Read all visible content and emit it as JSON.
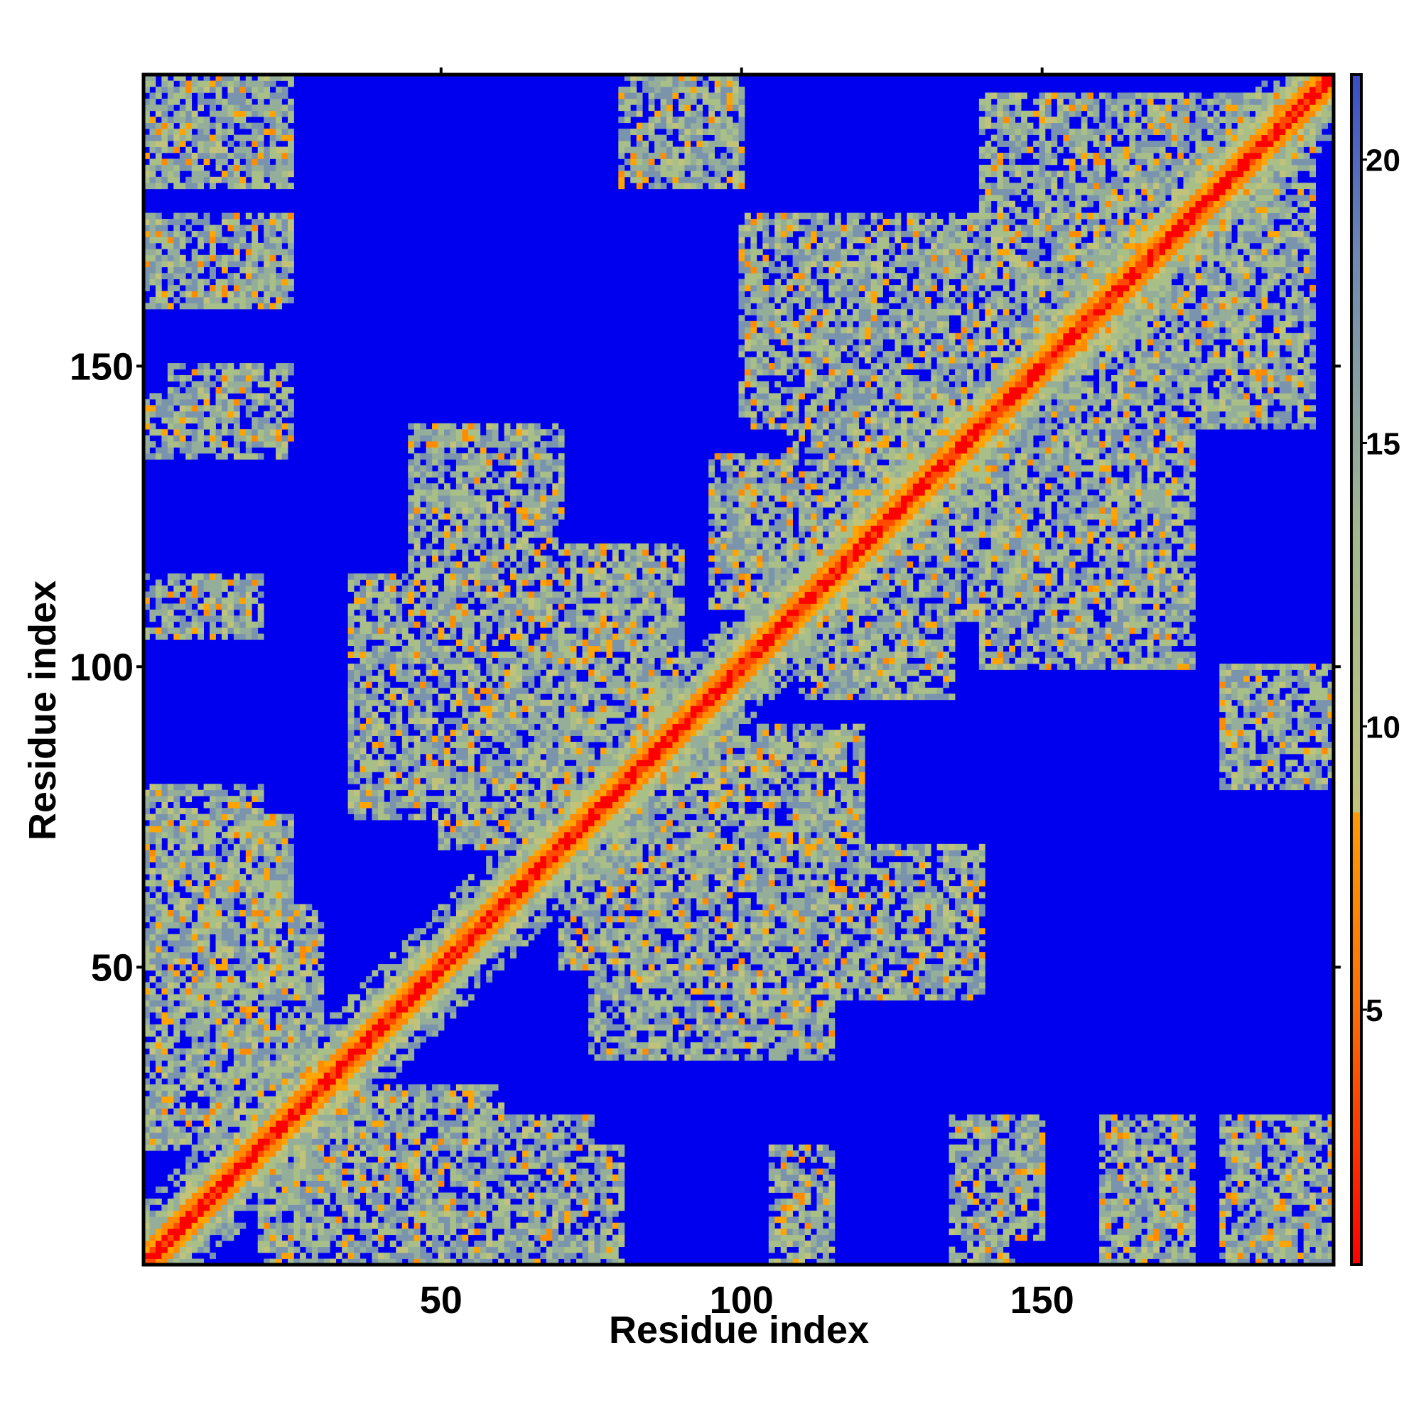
{
  "chart_data": {
    "type": "heatmap",
    "title": "",
    "xlabel": "Residue index",
    "ylabel": "Residue index",
    "xlim": [
      1,
      198
    ],
    "ylim": [
      1,
      198
    ],
    "x_ticks": [
      "50",
      "100",
      "150"
    ],
    "y_ticks": [
      "50",
      "100",
      "150"
    ],
    "colorbar": {
      "ticks": [
        "5",
        "10",
        "15",
        "20"
      ],
      "range": [
        0.5,
        21.5
      ],
      "colors": {
        "min": "#ff0000",
        "near": "#ff8c00",
        "mid": "#a9bf88",
        "far": "#6e88b4",
        "background": "#0000ee"
      }
    },
    "background_value": 21,
    "diagonal": {
      "from": 1,
      "to": 198
    },
    "contact_bands": [
      {
        "x": [
          35,
          58
        ],
        "y": [
          75,
          115
        ]
      },
      {
        "x": [
          50,
          75
        ],
        "y": [
          70,
          110
        ]
      },
      {
        "x": [
          95,
          120
        ],
        "y": [
          110,
          135
        ]
      },
      {
        "x": [
          108,
          140
        ],
        "y": [
          120,
          150
        ]
      },
      {
        "x": [
          130,
          160
        ],
        "y": [
          150,
          175
        ]
      },
      {
        "x": [
          140,
          175
        ],
        "y": [
          100,
          140
        ]
      },
      {
        "x": [
          160,
          195
        ],
        "y": [
          140,
          190
        ]
      },
      {
        "x": [
          1,
          30
        ],
        "y": [
          20,
          60
        ]
      },
      {
        "x": [
          30,
          60
        ],
        "y": [
          5,
          30
        ]
      },
      {
        "x": [
          55,
          80
        ],
        "y": [
          1,
          20
        ]
      },
      {
        "x": [
          80,
          120
        ],
        "y": [
          60,
          90
        ]
      },
      {
        "x": [
          105,
          140
        ],
        "y": [
          45,
          70
        ]
      },
      {
        "x": [
          135,
          150
        ],
        "y": [
          5,
          25
        ]
      },
      {
        "x": [
          160,
          175
        ],
        "y": [
          5,
          25
        ]
      },
      {
        "x": [
          180,
          198
        ],
        "y": [
          1,
          25
        ]
      },
      {
        "x": [
          1,
          25
        ],
        "y": [
          185,
          198
        ]
      },
      {
        "x": [
          1,
          25
        ],
        "y": [
          160,
          175
        ]
      },
      {
        "x": [
          1,
          20
        ],
        "y": [
          105,
          115
        ]
      },
      {
        "x": [
          1,
          20
        ],
        "y": [
          135,
          145
        ]
      },
      {
        "x": [
          1,
          25
        ],
        "y": [
          60,
          75
        ]
      },
      {
        "x": [
          180,
          198
        ],
        "y": [
          80,
          100
        ]
      }
    ]
  }
}
